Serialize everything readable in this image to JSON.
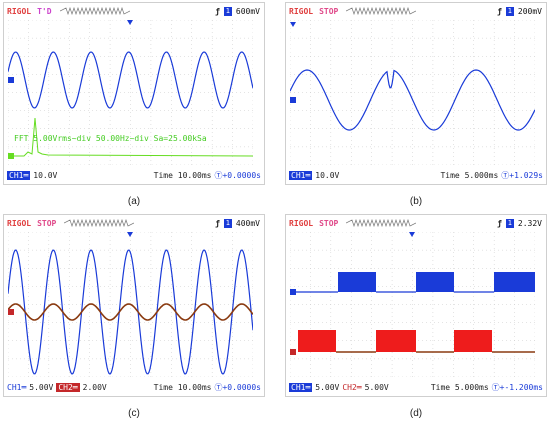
{
  "panels": [
    {
      "caption": "(a)",
      "brand": "RIGOL",
      "state": "T'D",
      "state_color": "#cc44cc",
      "trig_level": "600mV",
      "ch1": "CH1═",
      "ch1_scale": "10.0V",
      "ch2": "",
      "ch2_scale": "",
      "time": "Time 10.00ms",
      "offset": "Ⓣ+0.0000s",
      "fft_text": "FFT  5.00Vrms~div  50.00Hz~div  Sa=25.00kSa"
    },
    {
      "caption": "(b)",
      "brand": "RIGOL",
      "state": "STOP",
      "state_color": "#e04a8a",
      "trig_level": "200mV",
      "ch1": "CH1═",
      "ch1_scale": "10.0V",
      "ch2": "",
      "ch2_scale": "",
      "time": "Time 5.000ms",
      "offset": "Ⓣ+1.029s"
    },
    {
      "caption": "(c)",
      "brand": "RIGOL",
      "state": "STOP",
      "state_color": "#e04a8a",
      "trig_level": "400mV",
      "ch1": "CH1═",
      "ch1_scale": "5.00V",
      "ch2": "CH2═",
      "ch2_scale": "2.00V",
      "time": "Time 10.00ms",
      "offset": "Ⓣ+0.0000s"
    },
    {
      "caption": "(d)",
      "brand": "RIGOL",
      "state": "STOP",
      "state_color": "#e04a8a",
      "trig_level": "2.32V",
      "ch1": "CH1═",
      "ch1_scale": "5.00V",
      "ch2": "CH2═",
      "ch2_scale": "5.00V",
      "time": "Time 5.000ms",
      "offset": "Ⓣ+-1.200ms"
    }
  ],
  "colors": {
    "ch1": "#1a3bd8",
    "ch2": "#c4282a",
    "fft": "#66dd22",
    "grid": "#c0c0c0"
  },
  "icons": {
    "trigger_edge": "rising-edge-icon",
    "trigger_marker": "trigger-position-icon",
    "channel_marker": "channel-ground-marker-icon"
  }
}
